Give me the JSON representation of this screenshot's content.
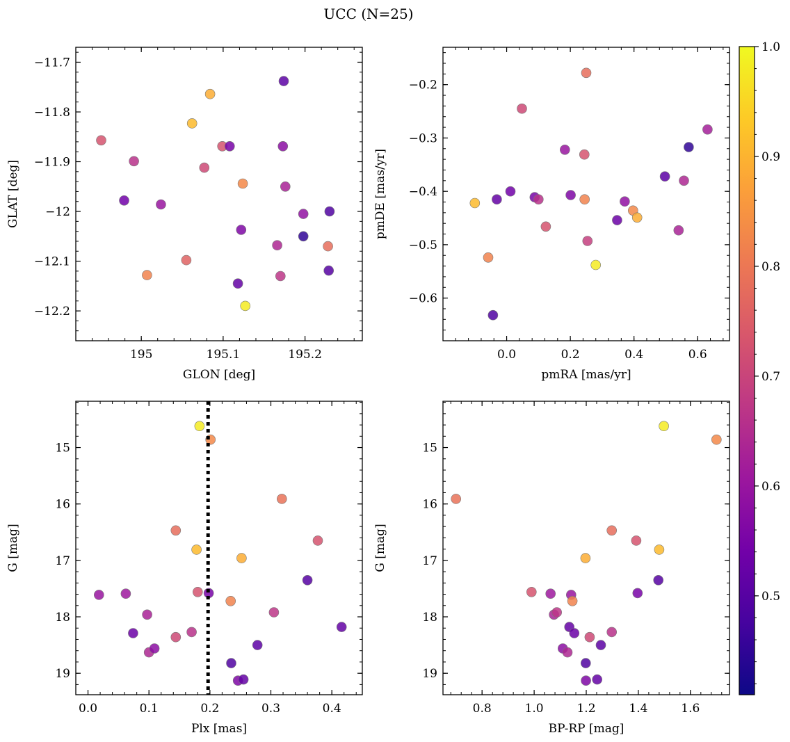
{
  "title": "UCC (N=25)",
  "colormap": [
    "#0d0887",
    "#46039f",
    "#7201a8",
    "#9c179e",
    "#bd3786",
    "#d8576b",
    "#ed7953",
    "#fb9f3a",
    "#fdca26",
    "#f0f921"
  ],
  "colorbar": {
    "min": 0.41,
    "max": 1.0,
    "ticks": [
      0.5,
      0.6,
      0.7,
      0.8,
      0.9,
      1.0
    ]
  },
  "chart_data": [
    {
      "type": "scatter",
      "xlabel": "GLON [deg]",
      "ylabel": "GLAT [deg]",
      "xlim": [
        194.92,
        195.27
      ],
      "ylim": [
        -12.26,
        -11.67
      ],
      "xticks": [
        195.0,
        195.1,
        195.2
      ],
      "yticks": [
        -12.2,
        -12.1,
        -12.0,
        -11.9,
        -11.8,
        -11.7
      ],
      "points": [
        {
          "x": 194.951,
          "y": -11.857,
          "c": 0.73
        },
        {
          "x": 194.979,
          "y": -11.978,
          "c": 0.54
        },
        {
          "x": 194.991,
          "y": -11.899,
          "c": 0.66
        },
        {
          "x": 195.007,
          "y": -12.128,
          "c": 0.82
        },
        {
          "x": 195.024,
          "y": -11.986,
          "c": 0.6
        },
        {
          "x": 195.055,
          "y": -12.098,
          "c": 0.76
        },
        {
          "x": 195.062,
          "y": -11.823,
          "c": 0.91
        },
        {
          "x": 195.077,
          "y": -11.912,
          "c": 0.71
        },
        {
          "x": 195.084,
          "y": -11.764,
          "c": 0.89
        },
        {
          "x": 195.099,
          "y": -11.869,
          "c": 0.73
        },
        {
          "x": 195.108,
          "y": -11.869,
          "c": 0.55
        },
        {
          "x": 195.118,
          "y": -12.145,
          "c": 0.52
        },
        {
          "x": 195.122,
          "y": -12.037,
          "c": 0.56
        },
        {
          "x": 195.124,
          "y": -11.944,
          "c": 0.83
        },
        {
          "x": 195.127,
          "y": -12.19,
          "c": 0.98
        },
        {
          "x": 195.166,
          "y": -12.068,
          "c": 0.64
        },
        {
          "x": 195.17,
          "y": -12.13,
          "c": 0.67
        },
        {
          "x": 195.173,
          "y": -11.869,
          "c": 0.58
        },
        {
          "x": 195.174,
          "y": -11.738,
          "c": 0.51
        },
        {
          "x": 195.176,
          "y": -11.95,
          "c": 0.63
        },
        {
          "x": 195.198,
          "y": -12.005,
          "c": 0.59
        },
        {
          "x": 195.198,
          "y": -12.05,
          "c": 0.45
        },
        {
          "x": 195.228,
          "y": -12.07,
          "c": 0.78
        },
        {
          "x": 195.229,
          "y": -12.119,
          "c": 0.5
        },
        {
          "x": 195.23,
          "y": -12.0,
          "c": 0.49
        }
      ]
    },
    {
      "type": "scatter",
      "xlabel": "pmRA [mas/yr]",
      "ylabel": "pmDE [mas/yr]",
      "xlim": [
        -0.2,
        0.7
      ],
      "ylim": [
        -0.68,
        -0.13
      ],
      "xticks": [
        0.0,
        0.2,
        0.4,
        0.6
      ],
      "yticks": [
        -0.6,
        -0.5,
        -0.4,
        -0.3,
        -0.2
      ],
      "points": [
        {
          "x": -0.1,
          "y": -0.422,
          "c": 0.91
        },
        {
          "x": -0.058,
          "y": -0.524,
          "c": 0.82
        },
        {
          "x": -0.043,
          "y": -0.632,
          "c": 0.49
        },
        {
          "x": -0.031,
          "y": -0.415,
          "c": 0.52
        },
        {
          "x": 0.012,
          "y": -0.4,
          "c": 0.54
        },
        {
          "x": 0.048,
          "y": -0.245,
          "c": 0.71
        },
        {
          "x": 0.088,
          "y": -0.411,
          "c": 0.55
        },
        {
          "x": 0.1,
          "y": -0.415,
          "c": 0.66
        },
        {
          "x": 0.123,
          "y": -0.466,
          "c": 0.73
        },
        {
          "x": 0.183,
          "y": -0.322,
          "c": 0.6
        },
        {
          "x": 0.201,
          "y": -0.407,
          "c": 0.56
        },
        {
          "x": 0.244,
          "y": -0.331,
          "c": 0.73
        },
        {
          "x": 0.245,
          "y": -0.415,
          "c": 0.82
        },
        {
          "x": 0.25,
          "y": -0.178,
          "c": 0.78
        },
        {
          "x": 0.254,
          "y": -0.493,
          "c": 0.69
        },
        {
          "x": 0.28,
          "y": -0.538,
          "c": 0.98
        },
        {
          "x": 0.347,
          "y": -0.454,
          "c": 0.53
        },
        {
          "x": 0.371,
          "y": -0.419,
          "c": 0.59
        },
        {
          "x": 0.397,
          "y": -0.436,
          "c": 0.83
        },
        {
          "x": 0.41,
          "y": -0.449,
          "c": 0.89
        },
        {
          "x": 0.497,
          "y": -0.372,
          "c": 0.51
        },
        {
          "x": 0.54,
          "y": -0.473,
          "c": 0.63
        },
        {
          "x": 0.557,
          "y": -0.38,
          "c": 0.64
        },
        {
          "x": 0.572,
          "y": -0.317,
          "c": 0.45
        },
        {
          "x": 0.631,
          "y": -0.284,
          "c": 0.62
        }
      ]
    },
    {
      "type": "scatter",
      "xlabel": "Plx [mas]",
      "ylabel": "G [mag]",
      "xlim": [
        -0.02,
        0.45
      ],
      "ylim": [
        19.38,
        14.18
      ],
      "xticks": [
        0.0,
        0.1,
        0.2,
        0.3,
        0.4
      ],
      "yticks": [
        15,
        16,
        17,
        18,
        19
      ],
      "vline": 0.197,
      "points": [
        {
          "x": 0.018,
          "y": 17.61,
          "c": 0.6
        },
        {
          "x": 0.062,
          "y": 17.59,
          "c": 0.61
        },
        {
          "x": 0.074,
          "y": 18.29,
          "c": 0.53
        },
        {
          "x": 0.097,
          "y": 17.96,
          "c": 0.63
        },
        {
          "x": 0.1,
          "y": 18.63,
          "c": 0.64
        },
        {
          "x": 0.109,
          "y": 18.56,
          "c": 0.58
        },
        {
          "x": 0.144,
          "y": 16.47,
          "c": 0.78
        },
        {
          "x": 0.144,
          "y": 18.36,
          "c": 0.71
        },
        {
          "x": 0.17,
          "y": 18.27,
          "c": 0.66
        },
        {
          "x": 0.178,
          "y": 16.81,
          "c": 0.91
        },
        {
          "x": 0.18,
          "y": 17.56,
          "c": 0.73
        },
        {
          "x": 0.183,
          "y": 14.62,
          "c": 0.98
        },
        {
          "x": 0.198,
          "y": 17.58,
          "c": 0.55
        },
        {
          "x": 0.201,
          "y": 14.86,
          "c": 0.83
        },
        {
          "x": 0.234,
          "y": 17.72,
          "c": 0.82
        },
        {
          "x": 0.235,
          "y": 18.82,
          "c": 0.49
        },
        {
          "x": 0.246,
          "y": 19.13,
          "c": 0.56
        },
        {
          "x": 0.252,
          "y": 16.96,
          "c": 0.89
        },
        {
          "x": 0.255,
          "y": 19.11,
          "c": 0.52
        },
        {
          "x": 0.278,
          "y": 18.5,
          "c": 0.51
        },
        {
          "x": 0.305,
          "y": 17.92,
          "c": 0.67
        },
        {
          "x": 0.318,
          "y": 15.91,
          "c": 0.79
        },
        {
          "x": 0.36,
          "y": 17.35,
          "c": 0.5
        },
        {
          "x": 0.377,
          "y": 16.65,
          "c": 0.73
        },
        {
          "x": 0.416,
          "y": 18.18,
          "c": 0.52
        }
      ]
    },
    {
      "type": "scatter",
      "xlabel": "BP-RP [mag]",
      "ylabel": "G [mag]",
      "xlim": [
        0.65,
        1.75
      ],
      "ylim": [
        19.38,
        14.18
      ],
      "xticks": [
        0.8,
        1.0,
        1.2,
        1.4,
        1.6
      ],
      "yticks": [
        15,
        16,
        17,
        18,
        19
      ],
      "points": [
        {
          "x": 0.7,
          "y": 15.91,
          "c": 0.79
        },
        {
          "x": 0.99,
          "y": 17.56,
          "c": 0.73
        },
        {
          "x": 1.063,
          "y": 17.59,
          "c": 0.61
        },
        {
          "x": 1.076,
          "y": 17.96,
          "c": 0.63
        },
        {
          "x": 1.087,
          "y": 17.92,
          "c": 0.67
        },
        {
          "x": 1.11,
          "y": 18.56,
          "c": 0.58
        },
        {
          "x": 1.128,
          "y": 18.63,
          "c": 0.64
        },
        {
          "x": 1.135,
          "y": 18.18,
          "c": 0.52
        },
        {
          "x": 1.142,
          "y": 17.61,
          "c": 0.6
        },
        {
          "x": 1.147,
          "y": 17.72,
          "c": 0.82
        },
        {
          "x": 1.154,
          "y": 18.29,
          "c": 0.53
        },
        {
          "x": 1.197,
          "y": 16.96,
          "c": 0.89
        },
        {
          "x": 1.198,
          "y": 18.82,
          "c": 0.49
        },
        {
          "x": 1.199,
          "y": 19.13,
          "c": 0.56
        },
        {
          "x": 1.213,
          "y": 18.36,
          "c": 0.71
        },
        {
          "x": 1.242,
          "y": 19.11,
          "c": 0.52
        },
        {
          "x": 1.256,
          "y": 18.5,
          "c": 0.51
        },
        {
          "x": 1.298,
          "y": 16.47,
          "c": 0.78
        },
        {
          "x": 1.298,
          "y": 18.27,
          "c": 0.66
        },
        {
          "x": 1.392,
          "y": 16.65,
          "c": 0.73
        },
        {
          "x": 1.397,
          "y": 17.58,
          "c": 0.55
        },
        {
          "x": 1.477,
          "y": 17.35,
          "c": 0.5
        },
        {
          "x": 1.48,
          "y": 16.81,
          "c": 0.91
        },
        {
          "x": 1.498,
          "y": 14.62,
          "c": 0.98
        },
        {
          "x": 1.7,
          "y": 14.86,
          "c": 0.83
        }
      ]
    }
  ]
}
